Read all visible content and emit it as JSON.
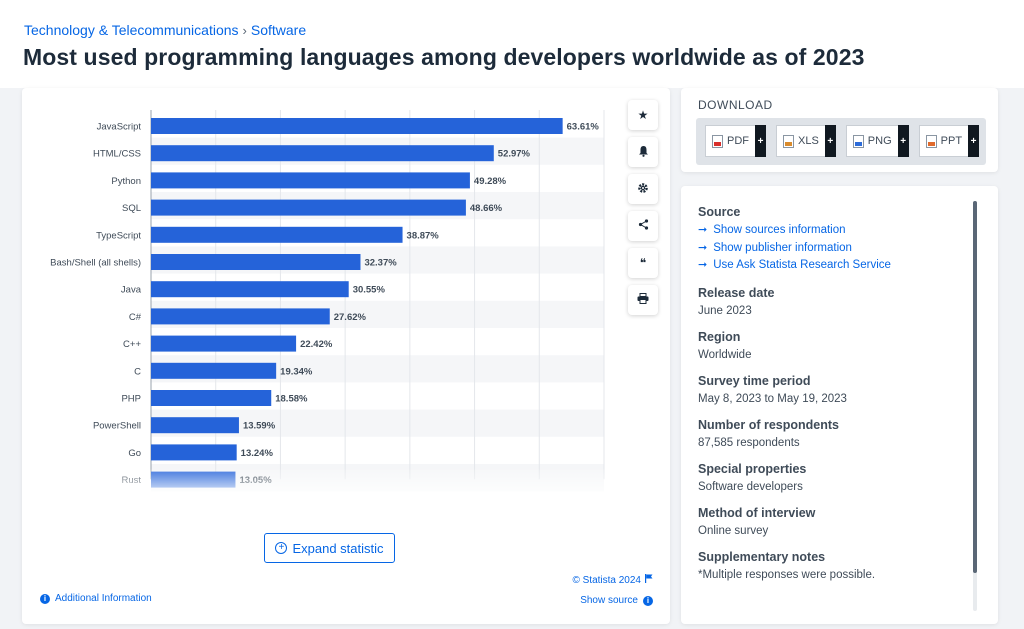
{
  "breadcrumb": {
    "category": "Technology & Telecommunications",
    "separator": "›",
    "subcategory": "Software"
  },
  "page": {
    "title": "Most used programming languages among developers worldwide as of 2023"
  },
  "tools": [
    {
      "name": "favorite-star-icon",
      "glyph": "★"
    },
    {
      "name": "notification-bell-icon",
      "glyph": "🔔"
    },
    {
      "name": "settings-gear-icon",
      "glyph": "⚙"
    },
    {
      "name": "share-icon",
      "glyph": "⋖"
    },
    {
      "name": "cite-quote-icon",
      "glyph": "❝"
    },
    {
      "name": "print-icon",
      "glyph": "⎙"
    }
  ],
  "chart_data": {
    "type": "bar",
    "orientation": "horizontal",
    "categories": [
      "JavaScript",
      "HTML/CSS",
      "Python",
      "SQL",
      "TypeScript",
      "Bash/Shell (all shells)",
      "Java",
      "C#",
      "C++",
      "C",
      "PHP",
      "PowerShell",
      "Go",
      "Rust"
    ],
    "values": [
      63.61,
      52.97,
      49.28,
      48.66,
      38.87,
      32.37,
      30.55,
      27.62,
      22.42,
      19.34,
      18.58,
      13.59,
      13.24,
      13.05
    ],
    "value_labels": [
      "63.61%",
      "52.97%",
      "49.28%",
      "48.66%",
      "38.87%",
      "32.37%",
      "30.55%",
      "27.62%",
      "22.42%",
      "19.34%",
      "18.58%",
      "13.59%",
      "13.24%",
      "13.05%"
    ],
    "xlim": [
      0,
      70
    ],
    "bar_color": "#2563d9",
    "grid": true
  },
  "expand": {
    "label": "Expand statistic",
    "icon": "plus-circle-icon"
  },
  "footer": {
    "copyright": "© Statista 2024",
    "show_source": "Show source",
    "additional_info": "Additional Information"
  },
  "download": {
    "title": "DOWNLOAD",
    "buttons": [
      {
        "label": "PDF",
        "color": "#d9302c"
      },
      {
        "label": "XLS",
        "color": "#d98b2c"
      },
      {
        "label": "PNG",
        "color": "#2c6bd9"
      },
      {
        "label": "PPT",
        "color": "#e06a2c"
      }
    ],
    "plus": "+"
  },
  "info": {
    "source_label": "Source",
    "links": [
      "Show sources information",
      "Show publisher information",
      "Use Ask Statista Research Service"
    ],
    "link_arrow": "➞",
    "sections": [
      {
        "label": "Release date",
        "value": "June 2023"
      },
      {
        "label": "Region",
        "value": "Worldwide"
      },
      {
        "label": "Survey time period",
        "value": "May 8, 2023 to May 19, 2023"
      },
      {
        "label": "Number of respondents",
        "value": "87,585 respondents"
      },
      {
        "label": "Special properties",
        "value": "Software developers"
      },
      {
        "label": "Method of interview",
        "value": "Online survey"
      },
      {
        "label": "Supplementary notes",
        "value": "*Multiple responses were possible."
      }
    ]
  }
}
